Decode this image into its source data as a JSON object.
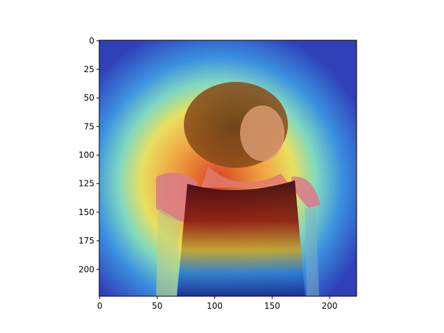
{
  "chart_data": {
    "type": "heatmap",
    "title": "",
    "xlabel": "",
    "ylabel": "",
    "xlim": [
      0,
      224
    ],
    "ylim": [
      224,
      0
    ],
    "x_ticks": [
      0,
      50,
      100,
      150,
      200
    ],
    "y_ticks": [
      0,
      25,
      50,
      75,
      100,
      125,
      150,
      175,
      200
    ],
    "grid": false,
    "image_size": [
      224,
      224
    ],
    "overlay": "attention heatmap (jet colormap) blended over a photograph of a young girl with dark curly hair in a dark dress with pink puffed sleeves",
    "colormap": "jet",
    "colors": {
      "low": "#1f2aa8",
      "mid_low": "#20b8e6",
      "mid": "#e8e84a",
      "mid_high": "#f08a2a",
      "high": "#b01010"
    }
  }
}
